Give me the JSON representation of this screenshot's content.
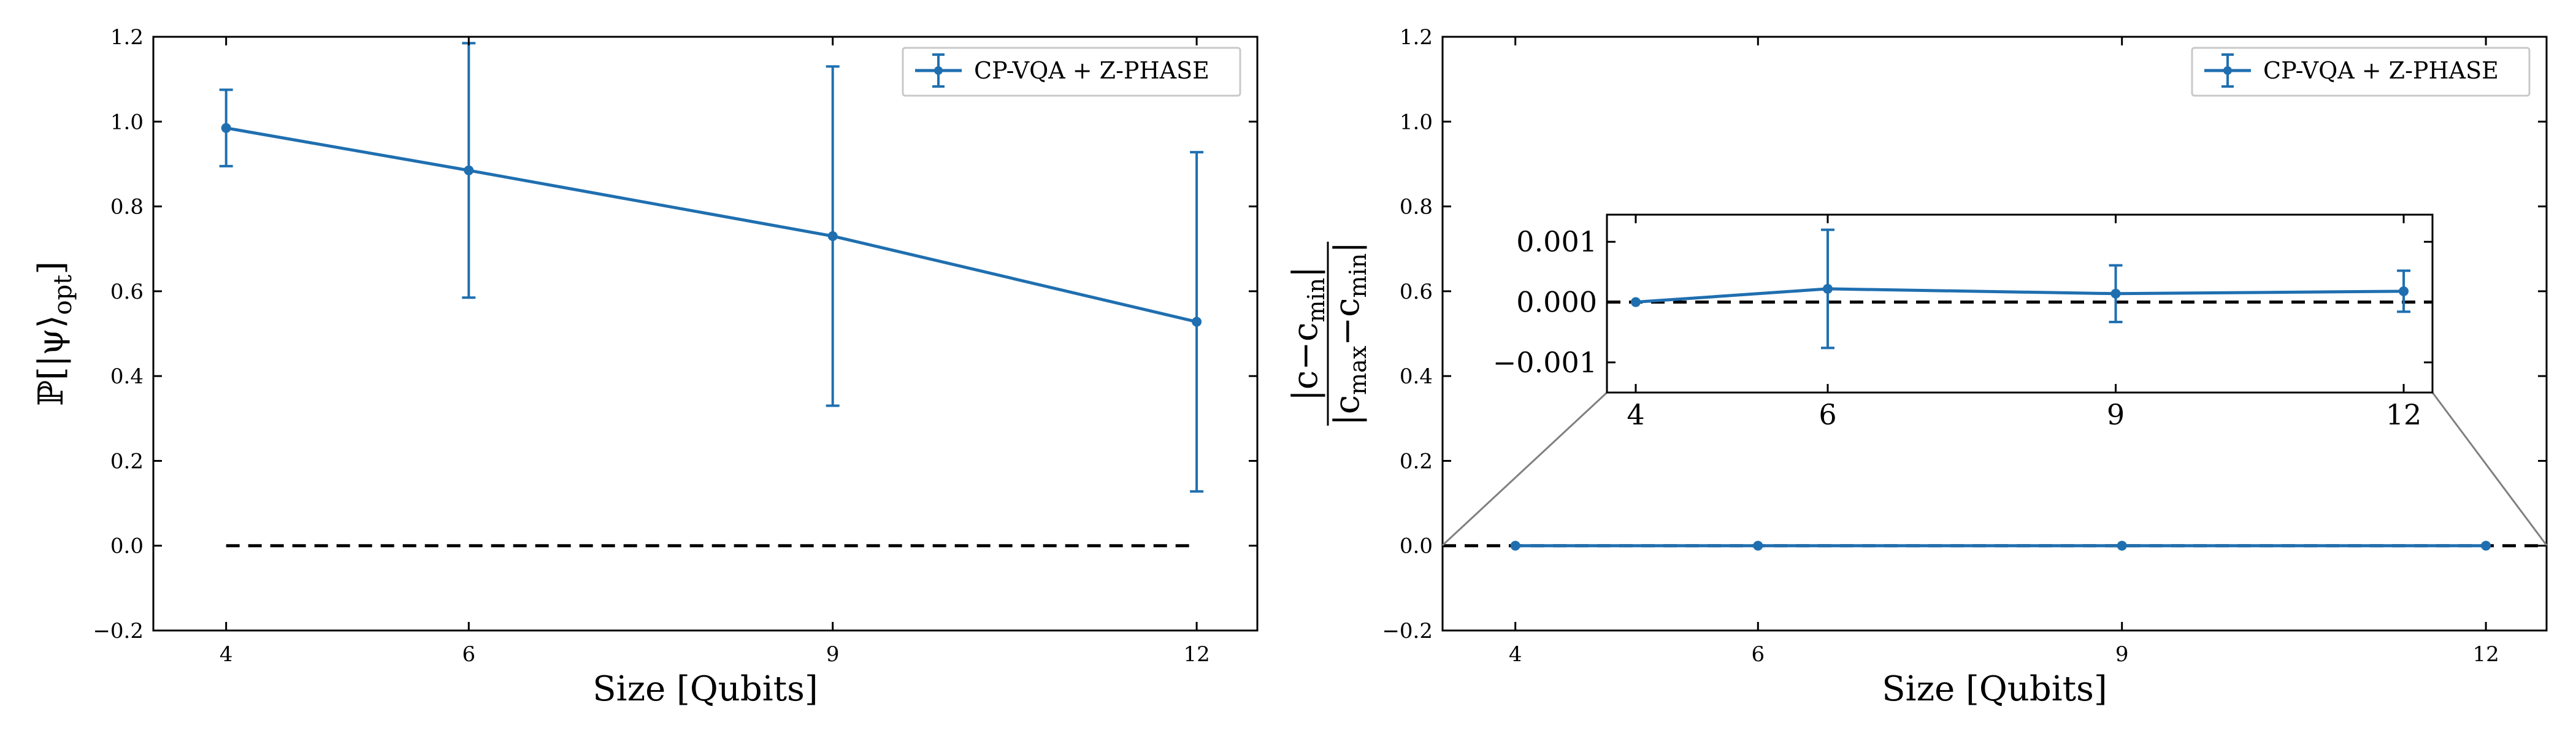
{
  "chart_data": [
    {
      "type": "line",
      "title": "",
      "xlabel": "Size [Qubits]",
      "ylabel": "ℙ[|ψ⟩opt]",
      "ylabel_main": "ℙ[|ψ⟩",
      "ylabel_sub": "opt",
      "ylabel_close": "]",
      "xlim": [
        3.4,
        12.5
      ],
      "ylim": [
        -0.2,
        1.2
      ],
      "x_ticks": [
        4,
        6,
        9,
        12
      ],
      "x_tick_labels": [
        "4",
        "6",
        "9",
        "12"
      ],
      "y_ticks": [
        -0.2,
        0.0,
        0.2,
        0.4,
        0.6,
        0.8,
        1.0,
        1.2
      ],
      "y_tick_labels": [
        "−0.2",
        "0.0",
        "0.2",
        "0.4",
        "0.6",
        "0.8",
        "1.0",
        "1.2"
      ],
      "grid": false,
      "legend_position": "top-right",
      "series": [
        {
          "name": "CP-VQA + Z-PHASE",
          "color": "#1f6fb0",
          "x": [
            4,
            6,
            9,
            12
          ],
          "y": [
            0.985,
            0.885,
            0.73,
            0.528
          ],
          "yerr": [
            0.09,
            0.3,
            0.4,
            0.4
          ]
        }
      ],
      "reference_line": {
        "y": 0.0,
        "x_range": [
          4,
          12
        ],
        "style": "dashed",
        "color": "#000000"
      }
    },
    {
      "type": "line",
      "title": "",
      "xlabel": "Size [Qubits]",
      "ylabel": "|c−cmin| / |cmax−cmin|",
      "ylabel_num": "|c−c",
      "ylabel_num_sub": "min",
      "ylabel_num_close": "|",
      "ylabel_den": "|c",
      "ylabel_den_sub1": "max",
      "ylabel_den_mid": "−c",
      "ylabel_den_sub2": "min",
      "ylabel_den_close": "|",
      "xlim": [
        3.4,
        12.5
      ],
      "ylim": [
        -0.2,
        1.2
      ],
      "x_ticks": [
        4,
        6,
        9,
        12
      ],
      "x_tick_labels": [
        "4",
        "6",
        "9",
        "12"
      ],
      "y_ticks": [
        -0.2,
        0.0,
        0.2,
        0.4,
        0.6,
        0.8,
        1.0,
        1.2
      ],
      "y_tick_labels": [
        "−0.2",
        "0.0",
        "0.2",
        "0.4",
        "0.6",
        "0.8",
        "1.0",
        "1.2"
      ],
      "grid": false,
      "legend_position": "top-right",
      "series": [
        {
          "name": "CP-VQA + Z-PHASE",
          "color": "#1f6fb0",
          "x": [
            4,
            6,
            9,
            12
          ],
          "y": [
            0.0,
            0.0,
            0.0,
            0.0
          ],
          "yerr": [
            0.0,
            0.0,
            0.0,
            0.0
          ]
        }
      ],
      "reference_line": {
        "y": 0.0,
        "x_range": [
          3.4,
          12.5
        ],
        "style": "dashed",
        "color": "#000000"
      },
      "inset": {
        "xlim": [
          3.7,
          12.3
        ],
        "ylim": [
          -0.0015,
          0.00145
        ],
        "x_ticks": [
          4,
          6,
          9,
          12
        ],
        "x_tick_labels": [
          "4",
          "6",
          "9",
          "12"
        ],
        "y_ticks": [
          -0.001,
          0.0,
          0.001
        ],
        "y_tick_labels": [
          "−0.001",
          "0.000",
          "0.001"
        ],
        "x": [
          4,
          6,
          9,
          12
        ],
        "y": [
          0.0,
          0.00022,
          0.00014,
          0.00018
        ],
        "yerr": [
          0.0,
          0.00098,
          0.00047,
          0.00034
        ],
        "reference_y": 0.0
      }
    }
  ]
}
